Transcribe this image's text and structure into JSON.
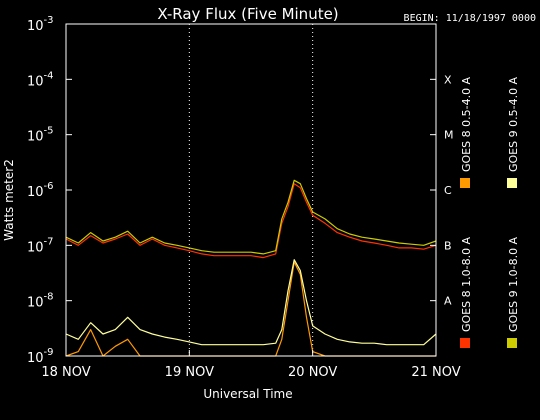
{
  "chart_data": {
    "type": "line",
    "title": "X-Ray Flux (Five Minute)",
    "begin_label": "BEGIN: 11/18/1997 0000",
    "xlabel": "Universal Time",
    "ylabel": "Watts meter2",
    "x_range_days": [
      0,
      3
    ],
    "x_ticks": [
      {
        "value": 0,
        "label": "18 NOV"
      },
      {
        "value": 1,
        "label": "19 NOV"
      },
      {
        "value": 2,
        "label": "20 NOV"
      },
      {
        "value": 3,
        "label": "21 NOV"
      }
    ],
    "y_scale": "log",
    "ylim": [
      1e-09,
      0.001
    ],
    "y_ticks": [
      {
        "value": 1e-09,
        "base": "10",
        "exp": "-9"
      },
      {
        "value": 1e-08,
        "base": "10",
        "exp": "-8"
      },
      {
        "value": 1e-07,
        "base": "10",
        "exp": "-7"
      },
      {
        "value": 1e-06,
        "base": "10",
        "exp": "-6"
      },
      {
        "value": 1e-05,
        "base": "10",
        "exp": "-5"
      },
      {
        "value": 0.0001,
        "base": "10",
        "exp": "-4"
      },
      {
        "value": 0.001,
        "base": "10",
        "exp": "-3"
      }
    ],
    "flare_classes": [
      {
        "label": "A",
        "value": 1e-08
      },
      {
        "label": "B",
        "value": 1e-07
      },
      {
        "label": "C",
        "value": 1e-06
      },
      {
        "label": "M",
        "value": 1e-05
      },
      {
        "label": "X",
        "value": 0.0001
      }
    ],
    "grid": "dotted vertical at day boundaries",
    "legend_placement": "right-vertical",
    "series": [
      {
        "name": "GOES 8  1.0-8.0 A",
        "color": "#ff3300",
        "x": [
          0,
          0.1,
          0.2,
          0.3,
          0.4,
          0.5,
          0.6,
          0.7,
          0.8,
          0.9,
          1.0,
          1.1,
          1.2,
          1.3,
          1.4,
          1.5,
          1.6,
          1.7,
          1.75,
          1.8,
          1.85,
          1.9,
          1.95,
          2.0,
          2.1,
          2.2,
          2.3,
          2.4,
          2.5,
          2.6,
          2.7,
          2.8,
          2.9,
          3.0
        ],
        "values": [
          1.3e-07,
          1e-07,
          1.5e-07,
          1.1e-07,
          1.3e-07,
          1.6e-07,
          1e-07,
          1.3e-07,
          1e-07,
          9e-08,
          8e-08,
          7e-08,
          6.5e-08,
          6.5e-08,
          6.5e-08,
          6.5e-08,
          6e-08,
          7e-08,
          2.5e-07,
          5e-07,
          1.3e-06,
          1.1e-06,
          6e-07,
          3.5e-07,
          2.5e-07,
          1.7e-07,
          1.4e-07,
          1.2e-07,
          1.1e-07,
          1e-07,
          9e-08,
          9e-08,
          8.5e-08,
          1e-07
        ]
      },
      {
        "name": "GOES 8  0.5-4.0 A",
        "color": "#ff9900",
        "x": [
          0,
          0.1,
          0.2,
          0.3,
          0.4,
          0.5,
          0.6,
          0.7,
          0.8,
          0.9,
          1.0,
          1.2,
          1.4,
          1.6,
          1.7,
          1.75,
          1.8,
          1.85,
          1.9,
          1.95,
          2.0,
          2.1,
          2.2,
          2.3,
          2.5,
          2.7,
          2.9,
          3.0
        ],
        "values": [
          1e-09,
          1.2e-09,
          3e-09,
          1e-09,
          1.5e-09,
          2e-09,
          1e-09,
          1e-09,
          1e-09,
          1e-09,
          1e-09,
          1e-09,
          1e-09,
          1e-09,
          1e-09,
          2e-09,
          1e-08,
          5e-08,
          3e-08,
          5e-09,
          1.2e-09,
          1e-09,
          1e-09,
          1e-09,
          1e-09,
          1e-09,
          1e-09,
          1e-09
        ]
      },
      {
        "name": "GOES 9  1.0-8.0 A",
        "color": "#cccc00",
        "x": [
          0,
          0.1,
          0.2,
          0.3,
          0.4,
          0.5,
          0.6,
          0.7,
          0.8,
          0.9,
          1.0,
          1.1,
          1.2,
          1.3,
          1.4,
          1.5,
          1.6,
          1.7,
          1.75,
          1.8,
          1.85,
          1.9,
          1.95,
          2.0,
          2.1,
          2.2,
          2.3,
          2.4,
          2.5,
          2.6,
          2.7,
          2.8,
          2.9,
          3.0
        ],
        "values": [
          1.4e-07,
          1.1e-07,
          1.7e-07,
          1.2e-07,
          1.4e-07,
          1.8e-07,
          1.1e-07,
          1.4e-07,
          1.1e-07,
          1e-07,
          9e-08,
          8e-08,
          7.5e-08,
          7.5e-08,
          7.5e-08,
          7.5e-08,
          7e-08,
          8e-08,
          3e-07,
          6e-07,
          1.5e-06,
          1.3e-06,
          7e-07,
          4e-07,
          3e-07,
          2e-07,
          1.6e-07,
          1.4e-07,
          1.3e-07,
          1.2e-07,
          1.1e-07,
          1.05e-07,
          1e-07,
          1.2e-07
        ]
      },
      {
        "name": "GOES 9  0.5-4.0 A",
        "color": "#ffff99",
        "x": [
          0,
          0.1,
          0.2,
          0.3,
          0.4,
          0.5,
          0.6,
          0.7,
          0.8,
          0.9,
          1.0,
          1.1,
          1.2,
          1.3,
          1.4,
          1.5,
          1.6,
          1.7,
          1.75,
          1.8,
          1.85,
          1.9,
          1.95,
          2.0,
          2.1,
          2.2,
          2.3,
          2.4,
          2.5,
          2.6,
          2.7,
          2.8,
          2.9,
          3.0
        ],
        "values": [
          2.5e-09,
          2e-09,
          4e-09,
          2.5e-09,
          3e-09,
          5e-09,
          3e-09,
          2.5e-09,
          2.2e-09,
          2e-09,
          1.8e-09,
          1.6e-09,
          1.6e-09,
          1.6e-09,
          1.6e-09,
          1.6e-09,
          1.6e-09,
          1.7e-09,
          3e-09,
          1.5e-08,
          5.5e-08,
          3.5e-08,
          1e-08,
          3.5e-09,
          2.5e-09,
          2e-09,
          1.8e-09,
          1.7e-09,
          1.7e-09,
          1.6e-09,
          1.6e-09,
          1.6e-09,
          1.6e-09,
          2.5e-09
        ]
      }
    ]
  }
}
